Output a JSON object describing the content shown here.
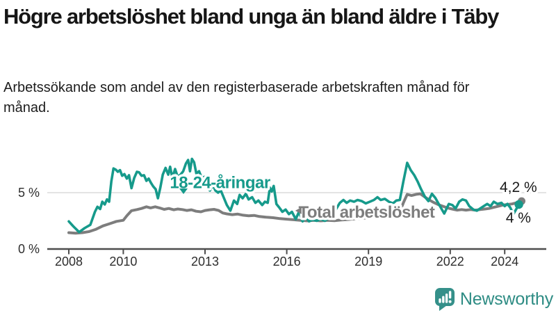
{
  "header": {
    "title": "Högre arbetslöshet bland unga än bland äldre i Täby",
    "subtitle": "Arbetssökande som andel av den registerbaserade arbetskraften månad för månad."
  },
  "footer": {
    "brand": "Newsworthy"
  },
  "colors": {
    "accent_teal": "#169a8b",
    "series_gray": "#7d7d7d",
    "grid": "#dcdcdc",
    "axis": "#4d4d4d",
    "text_dark": "#1a1a1a",
    "logo_teal": "#35908a"
  },
  "chart_data": {
    "type": "line",
    "title": "Högre arbetslöshet bland unga än bland äldre i Täby",
    "subtitle": "Arbetssökande som andel av den registerbaserade arbetskraften månad för månad.",
    "unit": "%",
    "grid": "horizontal-5-only",
    "legend_position": "inline-labels",
    "x_axis": {
      "range": [
        2007.2,
        2025.5
      ],
      "ticks": [
        {
          "value": 2008,
          "label": "2008"
        },
        {
          "value": 2010,
          "label": "2010"
        },
        {
          "value": 2013,
          "label": "2013"
        },
        {
          "value": 2016,
          "label": "2016"
        },
        {
          "value": 2019,
          "label": "2019"
        },
        {
          "value": 2022,
          "label": "2022"
        },
        {
          "value": 2024,
          "label": "2024"
        }
      ]
    },
    "y_axis": {
      "range": [
        0,
        9
      ],
      "ticks": [
        {
          "value": 0,
          "label": "0 %"
        },
        {
          "value": 5,
          "label": "5 %"
        }
      ]
    },
    "series": [
      {
        "name": "Total arbetslöshet",
        "color": "#7d7d7d",
        "end_value": 4.2,
        "end_label": "4,2 %",
        "dot_radius": 5.5,
        "width": 4,
        "points": [
          [
            2008.0,
            1.45
          ],
          [
            2008.25,
            1.4
          ],
          [
            2008.5,
            1.45
          ],
          [
            2008.75,
            1.55
          ],
          [
            2009.0,
            1.75
          ],
          [
            2009.25,
            2.05
          ],
          [
            2009.5,
            2.25
          ],
          [
            2009.75,
            2.45
          ],
          [
            2010.0,
            2.55
          ],
          [
            2010.13,
            2.95
          ],
          [
            2010.3,
            3.4
          ],
          [
            2010.5,
            3.5
          ],
          [
            2010.67,
            3.6
          ],
          [
            2010.85,
            3.75
          ],
          [
            2011.0,
            3.65
          ],
          [
            2011.17,
            3.75
          ],
          [
            2011.33,
            3.65
          ],
          [
            2011.5,
            3.52
          ],
          [
            2011.67,
            3.6
          ],
          [
            2011.85,
            3.48
          ],
          [
            2012.0,
            3.55
          ],
          [
            2012.17,
            3.5
          ],
          [
            2012.33,
            3.42
          ],
          [
            2012.5,
            3.48
          ],
          [
            2012.67,
            3.35
          ],
          [
            2012.85,
            3.3
          ],
          [
            2013.0,
            3.42
          ],
          [
            2013.17,
            3.48
          ],
          [
            2013.33,
            3.52
          ],
          [
            2013.5,
            3.42
          ],
          [
            2013.65,
            3.2
          ],
          [
            2013.8,
            3.12
          ],
          [
            2014.0,
            3.05
          ],
          [
            2014.2,
            3.1
          ],
          [
            2014.4,
            3.0
          ],
          [
            2014.6,
            2.95
          ],
          [
            2014.8,
            2.98
          ],
          [
            2015.0,
            2.88
          ],
          [
            2015.25,
            2.82
          ],
          [
            2015.5,
            2.78
          ],
          [
            2015.75,
            2.7
          ],
          [
            2016.0,
            2.65
          ],
          [
            2016.25,
            2.6
          ],
          [
            2016.5,
            2.55
          ],
          [
            2016.75,
            2.5
          ],
          [
            2017.0,
            2.55
          ],
          [
            2017.25,
            2.5
          ],
          [
            2017.5,
            2.55
          ],
          [
            2017.75,
            2.52
          ],
          [
            2018.0,
            2.58
          ],
          [
            2018.25,
            2.62
          ],
          [
            2018.5,
            2.68
          ],
          [
            2018.75,
            2.72
          ],
          [
            2019.0,
            2.78
          ],
          [
            2019.25,
            2.88
          ],
          [
            2019.5,
            2.92
          ],
          [
            2019.75,
            3.0
          ],
          [
            2020.0,
            3.1
          ],
          [
            2020.15,
            3.3
          ],
          [
            2020.28,
            4.1
          ],
          [
            2020.42,
            4.85
          ],
          [
            2020.58,
            4.75
          ],
          [
            2020.75,
            4.85
          ],
          [
            2020.9,
            4.9
          ],
          [
            2021.05,
            4.65
          ],
          [
            2021.2,
            4.4
          ],
          [
            2021.38,
            4.15
          ],
          [
            2021.55,
            3.95
          ],
          [
            2021.72,
            3.8
          ],
          [
            2021.9,
            3.65
          ],
          [
            2022.07,
            3.55
          ],
          [
            2022.25,
            3.45
          ],
          [
            2022.42,
            3.5
          ],
          [
            2022.58,
            3.45
          ],
          [
            2022.75,
            3.5
          ],
          [
            2022.92,
            3.45
          ],
          [
            2023.1,
            3.5
          ],
          [
            2023.27,
            3.55
          ],
          [
            2023.43,
            3.6
          ],
          [
            2023.6,
            3.7
          ],
          [
            2023.77,
            3.8
          ],
          [
            2023.93,
            3.9
          ],
          [
            2024.1,
            3.95
          ],
          [
            2024.27,
            4.0
          ],
          [
            2024.43,
            4.1
          ],
          [
            2024.62,
            4.25
          ]
        ]
      },
      {
        "name": "18-24-åringar",
        "color": "#169a8b",
        "end_value": 4.0,
        "end_label": "4 %",
        "dot_radius": 6.2,
        "width": 3.6,
        "points": [
          [
            2008.0,
            2.45
          ],
          [
            2008.17,
            2.0
          ],
          [
            2008.38,
            1.5
          ],
          [
            2008.58,
            1.85
          ],
          [
            2008.79,
            2.15
          ],
          [
            2008.96,
            3.3
          ],
          [
            2009.05,
            3.75
          ],
          [
            2009.15,
            3.55
          ],
          [
            2009.23,
            4.2
          ],
          [
            2009.32,
            3.95
          ],
          [
            2009.4,
            4.4
          ],
          [
            2009.48,
            4.2
          ],
          [
            2009.56,
            6.0
          ],
          [
            2009.64,
            7.15
          ],
          [
            2009.72,
            7.05
          ],
          [
            2009.8,
            6.85
          ],
          [
            2009.88,
            7.0
          ],
          [
            2009.96,
            6.5
          ],
          [
            2010.04,
            6.65
          ],
          [
            2010.13,
            6.25
          ],
          [
            2010.21,
            6.55
          ],
          [
            2010.3,
            5.4
          ],
          [
            2010.4,
            6.3
          ],
          [
            2010.5,
            6.85
          ],
          [
            2010.58,
            6.8
          ],
          [
            2010.67,
            6.5
          ],
          [
            2010.76,
            6.55
          ],
          [
            2010.85,
            6.05
          ],
          [
            2010.93,
            6.25
          ],
          [
            2011.02,
            5.85
          ],
          [
            2011.1,
            5.55
          ],
          [
            2011.19,
            5.3
          ],
          [
            2011.27,
            4.5
          ],
          [
            2011.36,
            5.45
          ],
          [
            2011.45,
            6.6
          ],
          [
            2011.55,
            7.2
          ],
          [
            2011.65,
            6.6
          ],
          [
            2011.72,
            7.3
          ],
          [
            2011.8,
            6.3
          ],
          [
            2011.9,
            7.1
          ],
          [
            2012.0,
            6.4
          ],
          [
            2012.1,
            6.6
          ],
          [
            2012.2,
            6.9
          ],
          [
            2012.3,
            7.6
          ],
          [
            2012.38,
            7.9
          ],
          [
            2012.45,
            6.9
          ],
          [
            2012.52,
            8.0
          ],
          [
            2012.6,
            7.7
          ],
          [
            2012.68,
            6.7
          ],
          [
            2012.78,
            6.9
          ],
          [
            2012.88,
            6.3
          ],
          [
            2012.98,
            6.4
          ],
          [
            2013.08,
            5.4
          ],
          [
            2013.18,
            5.2
          ],
          [
            2013.28,
            5.7
          ],
          [
            2013.38,
            5.2
          ],
          [
            2013.48,
            5.0
          ],
          [
            2013.58,
            5.2
          ],
          [
            2013.68,
            4.6
          ],
          [
            2013.8,
            3.9
          ],
          [
            2013.93,
            3.4
          ],
          [
            2014.06,
            4.3
          ],
          [
            2014.18,
            4.0
          ],
          [
            2014.27,
            4.8
          ],
          [
            2014.38,
            4.5
          ],
          [
            2014.5,
            4.9
          ],
          [
            2014.6,
            4.4
          ],
          [
            2014.73,
            4.6
          ],
          [
            2014.85,
            4.1
          ],
          [
            2014.96,
            4.3
          ],
          [
            2015.1,
            3.9
          ],
          [
            2015.2,
            4.2
          ],
          [
            2015.3,
            4.1
          ],
          [
            2015.38,
            5.45
          ],
          [
            2015.45,
            5.1
          ],
          [
            2015.52,
            5.6
          ],
          [
            2015.62,
            4.0
          ],
          [
            2015.72,
            3.7
          ],
          [
            2015.84,
            3.3
          ],
          [
            2015.96,
            3.5
          ],
          [
            2016.08,
            3.1
          ],
          [
            2016.19,
            3.3
          ],
          [
            2016.33,
            2.65
          ],
          [
            2016.45,
            3.3
          ],
          [
            2016.58,
            2.45
          ],
          [
            2016.7,
            2.85
          ],
          [
            2016.82,
            2.45
          ],
          [
            2016.95,
            2.6
          ],
          [
            2017.1,
            2.5
          ],
          [
            2017.25,
            2.65
          ],
          [
            2017.4,
            2.5
          ],
          [
            2017.6,
            2.9
          ],
          [
            2017.8,
            3.5
          ],
          [
            2017.95,
            4.1
          ],
          [
            2018.08,
            4.35
          ],
          [
            2018.2,
            4.1
          ],
          [
            2018.33,
            4.3
          ],
          [
            2018.47,
            4.2
          ],
          [
            2018.6,
            4.35
          ],
          [
            2018.75,
            4.25
          ],
          [
            2018.9,
            4.05
          ],
          [
            2019.05,
            4.2
          ],
          [
            2019.2,
            4.35
          ],
          [
            2019.33,
            4.6
          ],
          [
            2019.45,
            4.35
          ],
          [
            2019.6,
            4.45
          ],
          [
            2019.75,
            4.2
          ],
          [
            2019.9,
            4.05
          ],
          [
            2020.02,
            4.3
          ],
          [
            2020.15,
            4.35
          ],
          [
            2020.28,
            6.0
          ],
          [
            2020.42,
            7.65
          ],
          [
            2020.55,
            7.0
          ],
          [
            2020.68,
            6.55
          ],
          [
            2020.8,
            6.0
          ],
          [
            2020.93,
            5.3
          ],
          [
            2021.08,
            4.6
          ],
          [
            2021.2,
            4.25
          ],
          [
            2021.33,
            4.9
          ],
          [
            2021.45,
            4.55
          ],
          [
            2021.6,
            3.9
          ],
          [
            2021.78,
            3.15
          ],
          [
            2021.95,
            4.0
          ],
          [
            2022.08,
            3.9
          ],
          [
            2022.2,
            3.6
          ],
          [
            2022.33,
            4.2
          ],
          [
            2022.45,
            4.4
          ],
          [
            2022.58,
            4.3
          ],
          [
            2022.7,
            3.8
          ],
          [
            2022.85,
            3.5
          ],
          [
            2022.98,
            3.4
          ],
          [
            2023.1,
            3.6
          ],
          [
            2023.23,
            3.8
          ],
          [
            2023.36,
            4.0
          ],
          [
            2023.48,
            3.8
          ],
          [
            2023.6,
            4.2
          ],
          [
            2023.73,
            4.0
          ],
          [
            2023.88,
            4.1
          ],
          [
            2024.0,
            3.8
          ],
          [
            2024.1,
            4.0
          ],
          [
            2024.2,
            3.7
          ],
          [
            2024.32,
            3.1
          ],
          [
            2024.52,
            3.95
          ]
        ]
      }
    ],
    "annotations": [
      {
        "kind": "series-label",
        "text": "18-24-åringar",
        "x": 2013.55,
        "y": 5.4,
        "color": "#169a8b"
      },
      {
        "kind": "series-label",
        "text": "Total arbetslöshet",
        "x": 2018.93,
        "y": 2.78,
        "color": "#7d7d7d"
      },
      {
        "kind": "value-label",
        "text": "4,2 %",
        "x": 2024.5,
        "y": 5.06,
        "color": "#1a1a1a"
      },
      {
        "kind": "value-label",
        "text": "4 %",
        "x": 2024.5,
        "y": 2.35,
        "color": "#1a1a1a"
      },
      {
        "kind": "pointer-down",
        "x": 2012.21,
        "y": 5.06,
        "color": "#169a8b"
      },
      {
        "kind": "pointer-left",
        "x": 2016.44,
        "y": 3.4,
        "color": "#7d7d7d"
      }
    ]
  }
}
